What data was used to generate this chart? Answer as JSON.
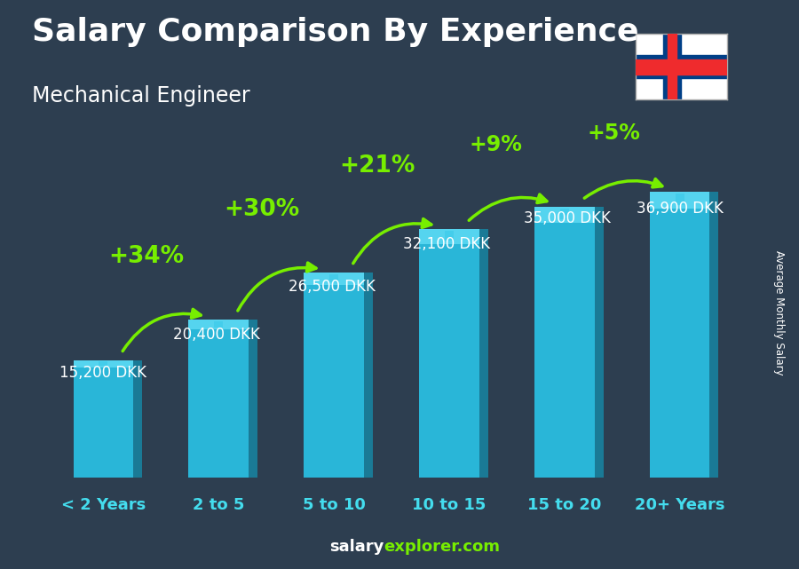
{
  "title": "Salary Comparison By Experience",
  "subtitle": "Mechanical Engineer",
  "ylabel": "Average Monthly Salary",
  "watermark_bold": "salary",
  "watermark_normal": "explorer.com",
  "categories": [
    "< 2 Years",
    "2 to 5",
    "5 to 10",
    "10 to 15",
    "15 to 20",
    "20+ Years"
  ],
  "values": [
    15200,
    20400,
    26500,
    32100,
    35000,
    36900
  ],
  "labels": [
    "15,200 DKK",
    "20,400 DKK",
    "26,500 DKK",
    "32,100 DKK",
    "35,000 DKK",
    "36,900 DKK"
  ],
  "pct_labels": [
    "+34%",
    "+30%",
    "+21%",
    "+9%",
    "+5%"
  ],
  "bar_color_front": "#29b6d8",
  "bar_color_light": "#55d4ef",
  "bar_color_side": "#1a7a96",
  "bar_color_top": "#3ecbea",
  "title_color": "#ffffff",
  "subtitle_color": "#ffffff",
  "label_color": "#ffffff",
  "pct_color": "#77ee00",
  "arrow_color": "#77ee00",
  "category_color": "#44ddee",
  "bg_color": "#2d3e50",
  "ylim": [
    0,
    44000
  ],
  "title_fontsize": 26,
  "subtitle_fontsize": 17,
  "label_fontsize": 12,
  "pct_fontsize": 18,
  "cat_fontsize": 13,
  "watermark_fontsize": 13
}
